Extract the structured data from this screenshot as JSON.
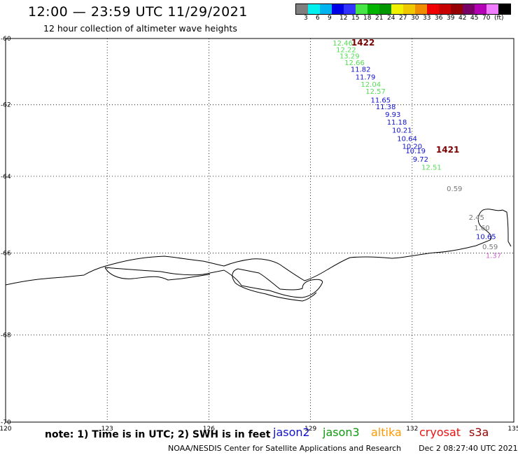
{
  "header": {
    "title": "12:00 — 23:59 UTC 11/29/2021",
    "subtitle": "12 hour collection of altimeter wave heights"
  },
  "color_scale": {
    "colors": [
      "#7f7f7f",
      "#00f0f0",
      "#00b4f0",
      "#0000e6",
      "#3232ff",
      "#46e646",
      "#00b400",
      "#009600",
      "#f0f000",
      "#f0c800",
      "#f08c00",
      "#f00000",
      "#c80000",
      "#960000",
      "#780064",
      "#b400b4",
      "#f07dff",
      "#000000"
    ],
    "labels": [
      "3",
      "6",
      "9",
      "12",
      "15",
      "18",
      "21",
      "24",
      "27",
      "30",
      "33",
      "36",
      "39",
      "42",
      "45",
      "70",
      "(ft)"
    ]
  },
  "map": {
    "lon_range": [
      120,
      135
    ],
    "lat_range": [
      -70,
      -60
    ],
    "lon_ticks": [
      "120",
      "123",
      "126",
      "129",
      "132",
      "135"
    ],
    "lat_ticks": [
      "-60",
      "-62",
      "-64",
      "-66",
      "-68",
      "-70"
    ],
    "grid_lons": [
      123,
      126,
      129,
      132
    ],
    "grid_lats": [
      -62,
      -64,
      -66,
      -68
    ]
  },
  "pass_labels": [
    {
      "text": "1422",
      "lon": 130.55,
      "lat": -60.22,
      "color": "#780000"
    },
    {
      "text": "1421",
      "lon": 133.05,
      "lat": -63.35,
      "color": "#780000"
    }
  ],
  "observations": [
    {
      "text": "12.46",
      "lon": 129.95,
      "lat": -60.22,
      "color": "#55dd55"
    },
    {
      "text": "12.22",
      "lon": 130.05,
      "lat": -60.42,
      "color": "#55dd55"
    },
    {
      "text": "13.29",
      "lon": 130.15,
      "lat": -60.62,
      "color": "#55dd55"
    },
    {
      "text": "12.66",
      "lon": 130.3,
      "lat": -60.82,
      "color": "#55dd55"
    },
    {
      "text": "11.82",
      "lon": 130.48,
      "lat": -61.02,
      "color": "#1111cc"
    },
    {
      "text": "11.79",
      "lon": 130.62,
      "lat": -61.25,
      "color": "#1111cc"
    },
    {
      "text": "12.04",
      "lon": 130.78,
      "lat": -61.47,
      "color": "#55dd55"
    },
    {
      "text": "12.57",
      "lon": 130.92,
      "lat": -61.68,
      "color": "#55dd55"
    },
    {
      "text": "11.65",
      "lon": 131.07,
      "lat": -61.93,
      "color": "#1111cc"
    },
    {
      "text": "11.38",
      "lon": 131.22,
      "lat": -62.13,
      "color": "#1111cc"
    },
    {
      "text": "9.93",
      "lon": 131.43,
      "lat": -62.35,
      "color": "#1111cc"
    },
    {
      "text": "11.18",
      "lon": 131.55,
      "lat": -62.57,
      "color": "#1111cc"
    },
    {
      "text": "10.21",
      "lon": 131.7,
      "lat": -62.8,
      "color": "#1111cc"
    },
    {
      "text": "10.64",
      "lon": 131.85,
      "lat": -63.03,
      "color": "#1111cc"
    },
    {
      "text": "10.20",
      "lon": 132.0,
      "lat": -63.25,
      "color": "#1111cc"
    },
    {
      "text": "10.19",
      "lon": 132.1,
      "lat": -63.37,
      "color": "#1111cc"
    },
    {
      "text": "9.72",
      "lon": 132.25,
      "lat": -63.6,
      "color": "#1111cc"
    },
    {
      "text": "12.51",
      "lon": 132.57,
      "lat": -63.82,
      "color": "#55dd55"
    },
    {
      "text": "0.59",
      "lon": 133.25,
      "lat": -64.4,
      "color": "#777777"
    },
    {
      "text": "2.45",
      "lon": 133.9,
      "lat": -65.15,
      "color": "#777777"
    },
    {
      "text": "1.60",
      "lon": 134.06,
      "lat": -65.42,
      "color": "#777777"
    },
    {
      "text": "10.65",
      "lon": 134.18,
      "lat": -65.65,
      "color": "#1111cc"
    },
    {
      "text": "0.59",
      "lon": 134.3,
      "lat": -65.9,
      "color": "#777777"
    },
    {
      "text": "1.37",
      "lon": 134.4,
      "lat": -66.12,
      "color": "#cc66cc"
    }
  ],
  "legend": {
    "note": "note: 1) Time is in UTC; 2) SWH is in feet",
    "satellites": [
      {
        "name": "jason2",
        "color": "#1111cc"
      },
      {
        "name": "jason3",
        "color": "#119911"
      },
      {
        "name": "altika",
        "color": "#ff9900"
      },
      {
        "name": "cryosat",
        "color": "#ee1111"
      },
      {
        "name": "s3a",
        "color": "#990000"
      }
    ]
  },
  "credit": {
    "text": "NOAA/NESDIS Center for Satellite Applications and Research",
    "timestamp": "Dec  2 08:27:40 UTC 2021"
  }
}
